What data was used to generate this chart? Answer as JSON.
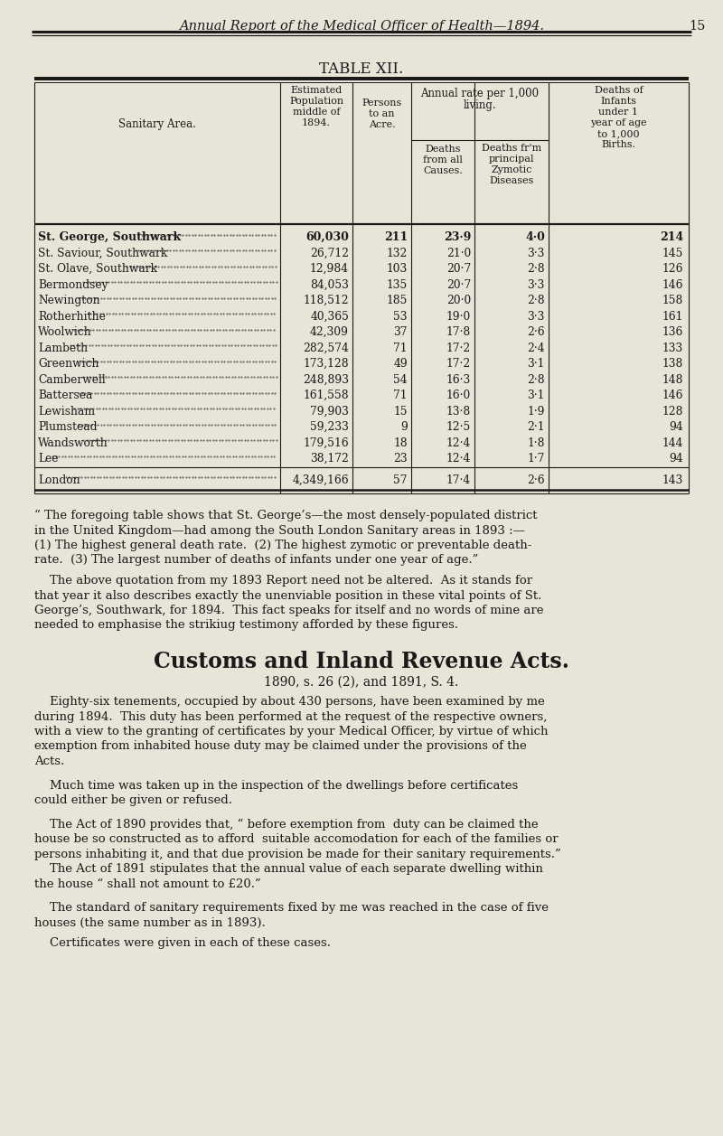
{
  "bg_color": "#e8e4d8",
  "text_color": "#1a1a1a",
  "page_header": "Annual Report of the Medical Officer of Health—1894.",
  "page_number": "15",
  "table_title": "TABLE XII.",
  "rows": [
    [
      "St. George, Southwark",
      "60,030",
      "211",
      "23·9",
      "4·0",
      "214",
      true
    ],
    [
      "St. Saviour, Southwark",
      "26,712",
      "132",
      "21·0",
      "3·3",
      "145",
      false
    ],
    [
      "St. Olave, Southwark",
      "12,984",
      "103",
      "20·7",
      "2·8",
      "126",
      false
    ],
    [
      "Bermondsey",
      "84,053",
      "135",
      "20·7",
      "3·3",
      "146",
      false
    ],
    [
      "Newington",
      "118,512",
      "185",
      "20·0",
      "2·8",
      "158",
      false
    ],
    [
      "Rotherhithe",
      "40,365",
      "53",
      "19·0",
      "3·3",
      "161",
      false
    ],
    [
      "Woolwich",
      "42,309",
      "37",
      "17·8",
      "2·6",
      "136",
      false
    ],
    [
      "Lambeth",
      "282,574",
      "71",
      "17·2",
      "2·4",
      "133",
      false
    ],
    [
      "Greenwich",
      "173,128",
      "49",
      "17·2",
      "3·1",
      "138",
      false
    ],
    [
      "Camberwell",
      "248,893",
      "54",
      "16·3",
      "2·8",
      "148",
      false
    ],
    [
      "Battersea",
      "161,558",
      "71",
      "16·0",
      "3·1",
      "146",
      false
    ],
    [
      "Lewisham",
      "79,903",
      "15",
      "13·8",
      "1·9",
      "128",
      false
    ],
    [
      "Plumstead",
      "59,233",
      "9",
      "12·5",
      "2·1",
      "94",
      false
    ],
    [
      "Wandsworth",
      "179,516",
      "18",
      "12·4",
      "1·8",
      "144",
      false
    ],
    [
      "Lee",
      "38,172",
      "23",
      "12·4",
      "1·7",
      "94",
      false
    ]
  ],
  "london_row": [
    "London",
    "4,349,166",
    "57",
    "17·4",
    "2·6",
    "143"
  ],
  "para1_line1": "“ The foregoing table shows that St. George’s—the most densely-populated district",
  "para1_line2": "in the United Kingdom—had among the South London Sanitary areas in 1893 :—",
  "para1_line3": "(1) The highest general death rate.  (2) The highest zymotic or preventable death-",
  "para1_line4": "rate.  (3) The largest number of deaths of infants under one year of age.”",
  "para2_line1": "    The above quotation from my 1893 Report need not be altered.  As it stands for",
  "para2_line2": "that year it also describes exactly the unenviable position in these vital points of St.",
  "para2_line3": "George’s, Southwark, for 1894.  This fact speaks for itself and no words of mine are",
  "para2_line4": "needed to emphasise the strikiug testimony afforded by these figures.",
  "section_title": "Customs and Inland Revenue Acts.",
  "subtitle": "1890, s. 26 (2), and 1891, S. 4.",
  "para3_line1": "    Eighty-six tenements, occupied by about 430 persons, have been examined by me",
  "para3_line2": "during 1894.  This duty has been performed at the request of the respective owners,",
  "para3_line3": "with a view to the granting of certificates by your Medical Officer, by virtue of which",
  "para3_line4": "exemption from inhabited house duty may be claimed under the provisions of the",
  "para3_line5": "Acts.",
  "para4_line1": "    Much time was taken up in the inspection of the dwellings before certificates",
  "para4_line2": "could either be given or refused.",
  "para5_line1": "    The Act of 1890 provides that, “ before exemption from  duty can be claimed the",
  "para5_line2": "house be so constructed as to afford  suitable accomodation for each of the families or",
  "para5_line3": "persons inhabiting it, and that due provision be made for their sanitary requirements.”",
  "para5_line4": "    The Act of 1891 stipulates that the annual value of each separate dwelling within",
  "para5_line5": "the house “ shall not amount to £20.”",
  "para6_line1": "    The standard of sanitary requirements fixed by me was reached in the case of five",
  "para6_line2": "houses (the same number as in 1893).",
  "para7_line1": "    Certificates were given in each of these cases."
}
